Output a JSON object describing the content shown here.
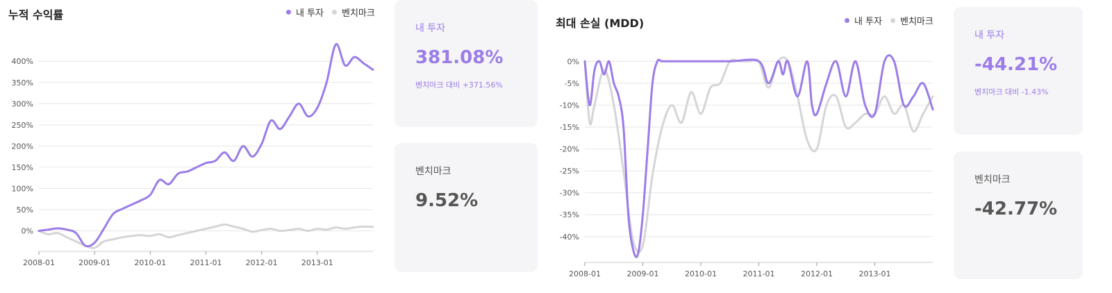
{
  "legend": {
    "mine": "내 투자",
    "benchmark": "벤치마크"
  },
  "colors": {
    "mine": "#9b7ce8",
    "benchmark": "#d5d5d9",
    "grid": "#e6e6e6"
  },
  "cards_left": {
    "mine": {
      "label": "내 투자",
      "value": "381.08%",
      "sub": "벤치마크 대비 +371.56%"
    },
    "benchmark": {
      "label": "벤치마크",
      "value": "9.52%"
    }
  },
  "cards_right": {
    "mine": {
      "label": "내 투자",
      "value": "-44.21%",
      "sub": "벤치마크 대비 -1.43%"
    },
    "benchmark": {
      "label": "벤치마크",
      "value": "-42.77%"
    }
  },
  "chart_data": [
    {
      "type": "line",
      "title": "누적 수익률",
      "x_ticks": [
        "2008-01",
        "2009-01",
        "2010-01",
        "2011-01",
        "2012-01",
        "2013-01"
      ],
      "y_ticks": [
        "0%",
        "50%",
        "100%",
        "150%",
        "200%",
        "250%",
        "300%",
        "350%",
        "400%"
      ],
      "ylim": [
        -45,
        420
      ],
      "x_range": [
        "2008-01",
        "2014-01"
      ],
      "grid": true,
      "legend_position": "top-right",
      "series": [
        {
          "name": "내 투자",
          "color": "#9b7ce8",
          "x": [
            "2008-01",
            "2008-03",
            "2008-05",
            "2008-07",
            "2008-09",
            "2008-11",
            "2009-01",
            "2009-03",
            "2009-05",
            "2009-07",
            "2009-09",
            "2009-11",
            "2010-01",
            "2010-03",
            "2010-05",
            "2010-07",
            "2010-09",
            "2010-11",
            "2011-01",
            "2011-03",
            "2011-05",
            "2011-07",
            "2011-09",
            "2011-11",
            "2012-01",
            "2012-03",
            "2012-05",
            "2012-07",
            "2012-09",
            "2012-11",
            "2013-01",
            "2013-03",
            "2013-05",
            "2013-07",
            "2013-09",
            "2013-11",
            "2014-01"
          ],
          "values": [
            0,
            3,
            6,
            3,
            -5,
            -35,
            -28,
            5,
            40,
            52,
            62,
            72,
            85,
            120,
            110,
            135,
            140,
            150,
            160,
            165,
            185,
            165,
            200,
            175,
            205,
            260,
            240,
            270,
            300,
            270,
            290,
            350,
            440,
            390,
            410,
            395,
            380
          ]
        },
        {
          "name": "벤치마크",
          "color": "#d5d5d9",
          "x": [
            "2008-01",
            "2008-03",
            "2008-05",
            "2008-07",
            "2008-09",
            "2008-11",
            "2009-01",
            "2009-03",
            "2009-05",
            "2009-07",
            "2009-09",
            "2009-11",
            "2010-01",
            "2010-03",
            "2010-05",
            "2010-07",
            "2010-09",
            "2010-11",
            "2011-01",
            "2011-03",
            "2011-05",
            "2011-07",
            "2011-09",
            "2011-11",
            "2012-01",
            "2012-03",
            "2012-05",
            "2012-07",
            "2012-09",
            "2012-11",
            "2013-01",
            "2013-03",
            "2013-05",
            "2013-07",
            "2013-09",
            "2013-11",
            "2014-01"
          ],
          "values": [
            0,
            -8,
            -5,
            -15,
            -25,
            -35,
            -40,
            -25,
            -20,
            -15,
            -12,
            -10,
            -12,
            -8,
            -15,
            -10,
            -5,
            0,
            5,
            10,
            15,
            10,
            5,
            -2,
            2,
            5,
            0,
            2,
            5,
            0,
            5,
            3,
            8,
            5,
            8,
            10,
            9.5
          ]
        }
      ]
    },
    {
      "type": "line",
      "title": "최대 손실 (MDD)",
      "x_ticks": [
        "2008-01",
        "2009-01",
        "2010-01",
        "2011-01",
        "2012-01",
        "2013-01"
      ],
      "y_ticks": [
        "0%",
        "-5%",
        "-10%",
        "-15%",
        "-20%",
        "-25%",
        "-30%",
        "-35%",
        "-40%"
      ],
      "ylim": [
        -44,
        1
      ],
      "x_range": [
        "2008-01",
        "2014-01"
      ],
      "grid": true,
      "legend_position": "top-right",
      "series": [
        {
          "name": "내 투자",
          "color": "#9b7ce8",
          "x": [
            "2008-01",
            "2008-02",
            "2008-03",
            "2008-04",
            "2008-05",
            "2008-06",
            "2008-07",
            "2008-08",
            "2008-09",
            "2008-10",
            "2008-11",
            "2008-12",
            "2009-01",
            "2009-02",
            "2009-03",
            "2009-04",
            "2009-05",
            "2009-07",
            "2010-01",
            "2010-07",
            "2011-01",
            "2011-03",
            "2011-05",
            "2011-06",
            "2011-07",
            "2011-09",
            "2011-11",
            "2011-12",
            "2012-01",
            "2012-03",
            "2012-05",
            "2012-07",
            "2012-09",
            "2012-11",
            "2013-01",
            "2013-03",
            "2013-05",
            "2013-07",
            "2013-09",
            "2013-11",
            "2014-01"
          ],
          "values": [
            0,
            -10,
            -2,
            0,
            -3,
            0,
            -5,
            -8,
            -15,
            -35,
            -43,
            -44,
            -35,
            -20,
            -5,
            0,
            0,
            0,
            0,
            0,
            0,
            -5,
            0,
            -3,
            0,
            -8,
            0,
            -10,
            -12,
            -5,
            0,
            -8,
            0,
            -10,
            -12,
            0,
            0,
            -10,
            -8,
            -5,
            -11
          ]
        },
        {
          "name": "벤치마크",
          "color": "#d5d5d9",
          "x": [
            "2008-01",
            "2008-02",
            "2008-03",
            "2008-05",
            "2008-07",
            "2008-09",
            "2008-11",
            "2009-01",
            "2009-03",
            "2009-05",
            "2009-07",
            "2009-09",
            "2009-11",
            "2010-01",
            "2010-03",
            "2010-05",
            "2010-07",
            "2010-09",
            "2010-11",
            "2011-01",
            "2011-03",
            "2011-05",
            "2011-07",
            "2011-09",
            "2011-11",
            "2012-01",
            "2012-03",
            "2012-05",
            "2012-07",
            "2012-09",
            "2012-11",
            "2013-01",
            "2013-03",
            "2013-05",
            "2013-07",
            "2013-09",
            "2013-11",
            "2014-01"
          ],
          "values": [
            0,
            -14,
            -10,
            -2,
            -10,
            -25,
            -41,
            -42,
            -26,
            -15,
            -10,
            -14,
            -7,
            -12,
            -6,
            -5,
            0,
            0,
            0,
            0,
            -6,
            0,
            0,
            -8,
            -18,
            -20,
            -10,
            -8,
            -15,
            -14,
            -12,
            -12,
            -8,
            -12,
            -10,
            -16,
            -12,
            -8
          ]
        }
      ]
    }
  ]
}
